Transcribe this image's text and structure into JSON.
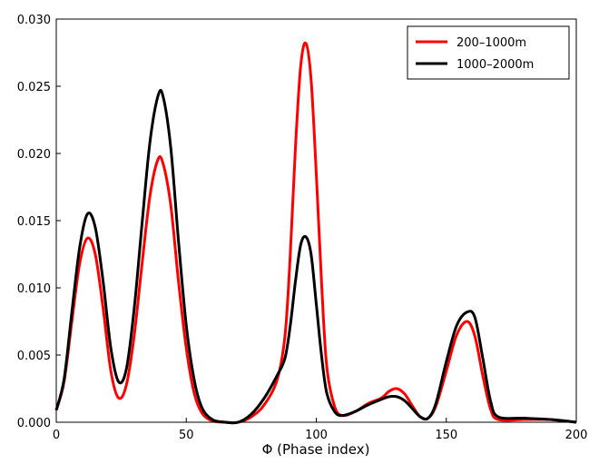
{
  "chart_data": {
    "type": "line",
    "title": "",
    "xlabel": "Φ (Phase index)",
    "ylabel": "",
    "xlim": [
      0,
      200
    ],
    "ylim": [
      0,
      0.03
    ],
    "grid": false,
    "legend_position": "top-right",
    "x_ticks": [
      "0",
      "50",
      "100",
      "150",
      "200"
    ],
    "y_ticks": [
      "0.000",
      "0.005",
      "0.010",
      "0.015",
      "0.020",
      "0.025",
      "0.030"
    ],
    "series": [
      {
        "name": "200–1000m",
        "color": "#ff0000",
        "points": [
          [
            0,
            0.0009
          ],
          [
            3,
            0.003
          ],
          [
            6,
            0.0075
          ],
          [
            9,
            0.0118
          ],
          [
            12,
            0.0137
          ],
          [
            15,
            0.0125
          ],
          [
            18,
            0.0085
          ],
          [
            21,
            0.0038
          ],
          [
            24,
            0.0018
          ],
          [
            27,
            0.0028
          ],
          [
            30,
            0.0065
          ],
          [
            33,
            0.0118
          ],
          [
            36,
            0.0168
          ],
          [
            39,
            0.0195
          ],
          [
            41,
            0.0193
          ],
          [
            44,
            0.0162
          ],
          [
            47,
            0.0105
          ],
          [
            50,
            0.0055
          ],
          [
            53,
            0.0022
          ],
          [
            56,
            0.0007
          ],
          [
            60,
            0.0001
          ],
          [
            65,
            0.0
          ],
          [
            70,
            0.0
          ],
          [
            75,
            0.0004
          ],
          [
            80,
            0.0013
          ],
          [
            85,
            0.0032
          ],
          [
            88,
            0.0065
          ],
          [
            90,
            0.0125
          ],
          [
            92,
            0.0205
          ],
          [
            94,
            0.0265
          ],
          [
            96,
            0.0282
          ],
          [
            98,
            0.0255
          ],
          [
            100,
            0.0185
          ],
          [
            102,
            0.0105
          ],
          [
            104,
            0.0042
          ],
          [
            107,
            0.0012
          ],
          [
            110,
            0.0005
          ],
          [
            115,
            0.0008
          ],
          [
            120,
            0.0014
          ],
          [
            125,
            0.0018
          ],
          [
            128,
            0.0023
          ],
          [
            131,
            0.0025
          ],
          [
            134,
            0.0021
          ],
          [
            137,
            0.0012
          ],
          [
            140,
            0.0004
          ],
          [
            143,
            0.0003
          ],
          [
            146,
            0.0012
          ],
          [
            150,
            0.0038
          ],
          [
            154,
            0.0065
          ],
          [
            158,
            0.0075
          ],
          [
            161,
            0.0064
          ],
          [
            164,
            0.0035
          ],
          [
            167,
            0.001
          ],
          [
            170,
            0.0002
          ],
          [
            180,
            0.0002
          ],
          [
            190,
            0.0002
          ],
          [
            200,
            0.0
          ]
        ]
      },
      {
        "name": "1000–2000m",
        "color": "#000000",
        "points": [
          [
            0,
            0.0009
          ],
          [
            3,
            0.0032
          ],
          [
            6,
            0.0082
          ],
          [
            9,
            0.013
          ],
          [
            12,
            0.0155
          ],
          [
            15,
            0.0145
          ],
          [
            18,
            0.0105
          ],
          [
            21,
            0.0055
          ],
          [
            24,
            0.003
          ],
          [
            27,
            0.004
          ],
          [
            30,
            0.0085
          ],
          [
            33,
            0.0148
          ],
          [
            36,
            0.0208
          ],
          [
            39,
            0.0242
          ],
          [
            41,
            0.0243
          ],
          [
            44,
            0.0205
          ],
          [
            47,
            0.0135
          ],
          [
            50,
            0.0072
          ],
          [
            53,
            0.0032
          ],
          [
            56,
            0.0011
          ],
          [
            60,
            0.0002
          ],
          [
            65,
            0.0
          ],
          [
            70,
            0.0
          ],
          [
            75,
            0.0006
          ],
          [
            80,
            0.0018
          ],
          [
            85,
            0.0035
          ],
          [
            88,
            0.0048
          ],
          [
            90,
            0.0072
          ],
          [
            92,
            0.0105
          ],
          [
            94,
            0.0132
          ],
          [
            96,
            0.0138
          ],
          [
            98,
            0.0125
          ],
          [
            100,
            0.0088
          ],
          [
            102,
            0.005
          ],
          [
            104,
            0.0022
          ],
          [
            107,
            0.0008
          ],
          [
            110,
            0.0005
          ],
          [
            115,
            0.0008
          ],
          [
            120,
            0.0013
          ],
          [
            125,
            0.0017
          ],
          [
            128,
            0.0019
          ],
          [
            131,
            0.0019
          ],
          [
            134,
            0.0016
          ],
          [
            137,
            0.001
          ],
          [
            140,
            0.0004
          ],
          [
            143,
            0.0003
          ],
          [
            146,
            0.0014
          ],
          [
            150,
            0.0045
          ],
          [
            154,
            0.0072
          ],
          [
            158,
            0.0082
          ],
          [
            161,
            0.0078
          ],
          [
            164,
            0.0048
          ],
          [
            167,
            0.0016
          ],
          [
            170,
            0.0004
          ],
          [
            180,
            0.0003
          ],
          [
            190,
            0.0002
          ],
          [
            200,
            0.0
          ]
        ]
      }
    ]
  }
}
